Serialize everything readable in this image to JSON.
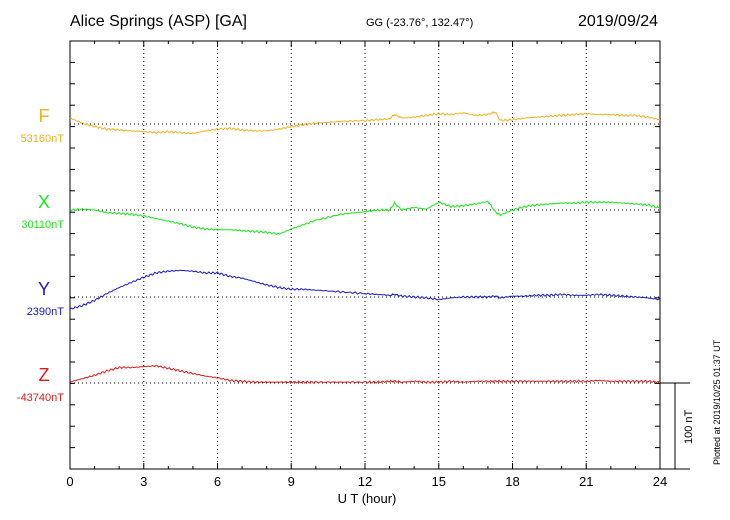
{
  "header": {
    "station": "Alice Springs (ASP)  [GA]",
    "coords": "GG (-23.76°, 132.47°)",
    "date": "2019/09/24",
    "plotted": "Plotted at 2019/10/25 01:37 UT"
  },
  "chart_data": {
    "type": "line",
    "xlabel": "U T (hour)",
    "xlim": [
      0,
      24
    ],
    "xticks": [
      "0",
      "3",
      "6",
      "9",
      "12",
      "15",
      "18",
      "21",
      "24"
    ],
    "scale_bar_label": "100 nT",
    "scale_bar_nT": 100,
    "y_range_nT": 400,
    "grid": "dotted at every 3 hours",
    "series": [
      {
        "letter": "F",
        "baseline_label": "53160nT",
        "baseline": 53160,
        "color": "#f2b01e",
        "x": [
          0,
          0.5,
          1,
          1.5,
          2,
          2.5,
          3,
          3.5,
          4,
          4.5,
          5,
          5.5,
          6,
          6.5,
          7,
          7.5,
          8,
          8.5,
          9,
          9.5,
          10,
          11,
          12,
          12.5,
          13,
          13.2,
          13.5,
          14,
          14.5,
          15,
          15.5,
          16,
          16.5,
          17,
          17.3,
          17.5,
          18,
          18.5,
          19,
          19.5,
          20,
          20.5,
          21,
          21.5,
          22,
          22.5,
          23,
          23.5,
          24
        ],
        "values": [
          53167,
          53161,
          53157,
          53154,
          53153,
          53152,
          53151,
          53150,
          53151,
          53150,
          53149,
          53152,
          53154,
          53155,
          53153,
          53152,
          53152,
          53154,
          53157,
          53159,
          53161,
          53163,
          53164,
          53165,
          53166,
          53171,
          53167,
          53168,
          53170,
          53172,
          53171,
          53173,
          53170,
          53171,
          53174,
          53164,
          53165,
          53167,
          53168,
          53169,
          53170,
          53171,
          53172,
          53171,
          53171,
          53170,
          53170,
          53168,
          53165
        ]
      },
      {
        "letter": "X",
        "baseline_label": "30110nT",
        "baseline": 30110,
        "color": "#18e818",
        "x": [
          0,
          0.5,
          1,
          1.5,
          2,
          2.5,
          3,
          3.5,
          4,
          4.5,
          5,
          5.5,
          6,
          6.5,
          7,
          7.5,
          8,
          8.5,
          9,
          9.5,
          10,
          11,
          12,
          12.5,
          13,
          13.2,
          13.5,
          14,
          14.5,
          15,
          15.5,
          16,
          16.5,
          17,
          17.3,
          17.5,
          18,
          18.5,
          19,
          19.5,
          20,
          20.5,
          21,
          21.5,
          22,
          22.5,
          23,
          23.5,
          24
        ],
        "values": [
          30110,
          30111,
          30110,
          30107,
          30106,
          30105,
          30103,
          30100,
          30097,
          30094,
          30090,
          30088,
          30087,
          30087,
          30086,
          30085,
          30084,
          30082,
          30088,
          30093,
          30098,
          30105,
          30108,
          30110,
          30110,
          30118,
          30110,
          30113,
          30111,
          30119,
          30114,
          30115,
          30117,
          30120,
          30108,
          30104,
          30110,
          30114,
          30116,
          30117,
          30118,
          30118,
          30119,
          30119,
          30119,
          30118,
          30117,
          30116,
          30112
        ]
      },
      {
        "letter": "Y",
        "baseline_label": "2390nT",
        "baseline": 2390,
        "color": "#1818d0",
        "x": [
          0,
          0.5,
          1,
          1.5,
          2,
          2.5,
          3,
          3.5,
          4,
          4.5,
          5,
          5.5,
          6,
          6.5,
          7,
          7.5,
          8,
          8.5,
          9,
          9.5,
          10,
          11,
          12,
          12.5,
          13,
          13.2,
          13.5,
          14,
          14.5,
          15,
          15.5,
          16,
          16.5,
          17,
          17.3,
          17.5,
          18,
          18.5,
          19,
          19.5,
          20,
          20.5,
          21,
          21.5,
          22,
          22.5,
          23,
          23.5,
          24
        ],
        "values": [
          2376,
          2380,
          2386,
          2394,
          2401,
          2407,
          2413,
          2418,
          2420,
          2421,
          2420,
          2418,
          2418,
          2414,
          2412,
          2408,
          2404,
          2401,
          2399,
          2399,
          2398,
          2396,
          2394,
          2393,
          2392,
          2393,
          2391,
          2390,
          2389,
          2387,
          2389,
          2390,
          2390,
          2390,
          2391,
          2389,
          2391,
          2391,
          2392,
          2392,
          2393,
          2392,
          2392,
          2393,
          2392,
          2391,
          2390,
          2389,
          2387
        ]
      },
      {
        "letter": "Z",
        "baseline_label": "-43740nT",
        "baseline": -43740,
        "color": "#e01818",
        "x": [
          0,
          0.5,
          1,
          1.5,
          2,
          2.5,
          3,
          3.5,
          4,
          4.5,
          5,
          5.5,
          6,
          6.5,
          7,
          7.5,
          8,
          8.5,
          9,
          9.5,
          10,
          11,
          12,
          12.5,
          13,
          13.2,
          13.5,
          14,
          14.5,
          15,
          15.5,
          16,
          16.5,
          17,
          17.3,
          17.5,
          18,
          18.5,
          19,
          19.5,
          20,
          20.5,
          21,
          21.5,
          22,
          22.5,
          23,
          23.5,
          24
        ],
        "values": [
          -43739,
          -43735,
          -43731,
          -43726,
          -43722,
          -43722,
          -43721,
          -43720,
          -43723,
          -43726,
          -43729,
          -43732,
          -43734,
          -43737,
          -43738,
          -43739,
          -43739,
          -43739,
          -43739,
          -43739,
          -43739,
          -43739,
          -43739,
          -43739,
          -43738,
          -43738,
          -43739,
          -43738,
          -43739,
          -43739,
          -43738,
          -43739,
          -43738,
          -43738,
          -43738,
          -43738,
          -43738,
          -43738,
          -43738,
          -43738,
          -43738,
          -43738,
          -43738,
          -43737,
          -43738,
          -43738,
          -43738,
          -43738,
          -43739
        ]
      }
    ]
  }
}
